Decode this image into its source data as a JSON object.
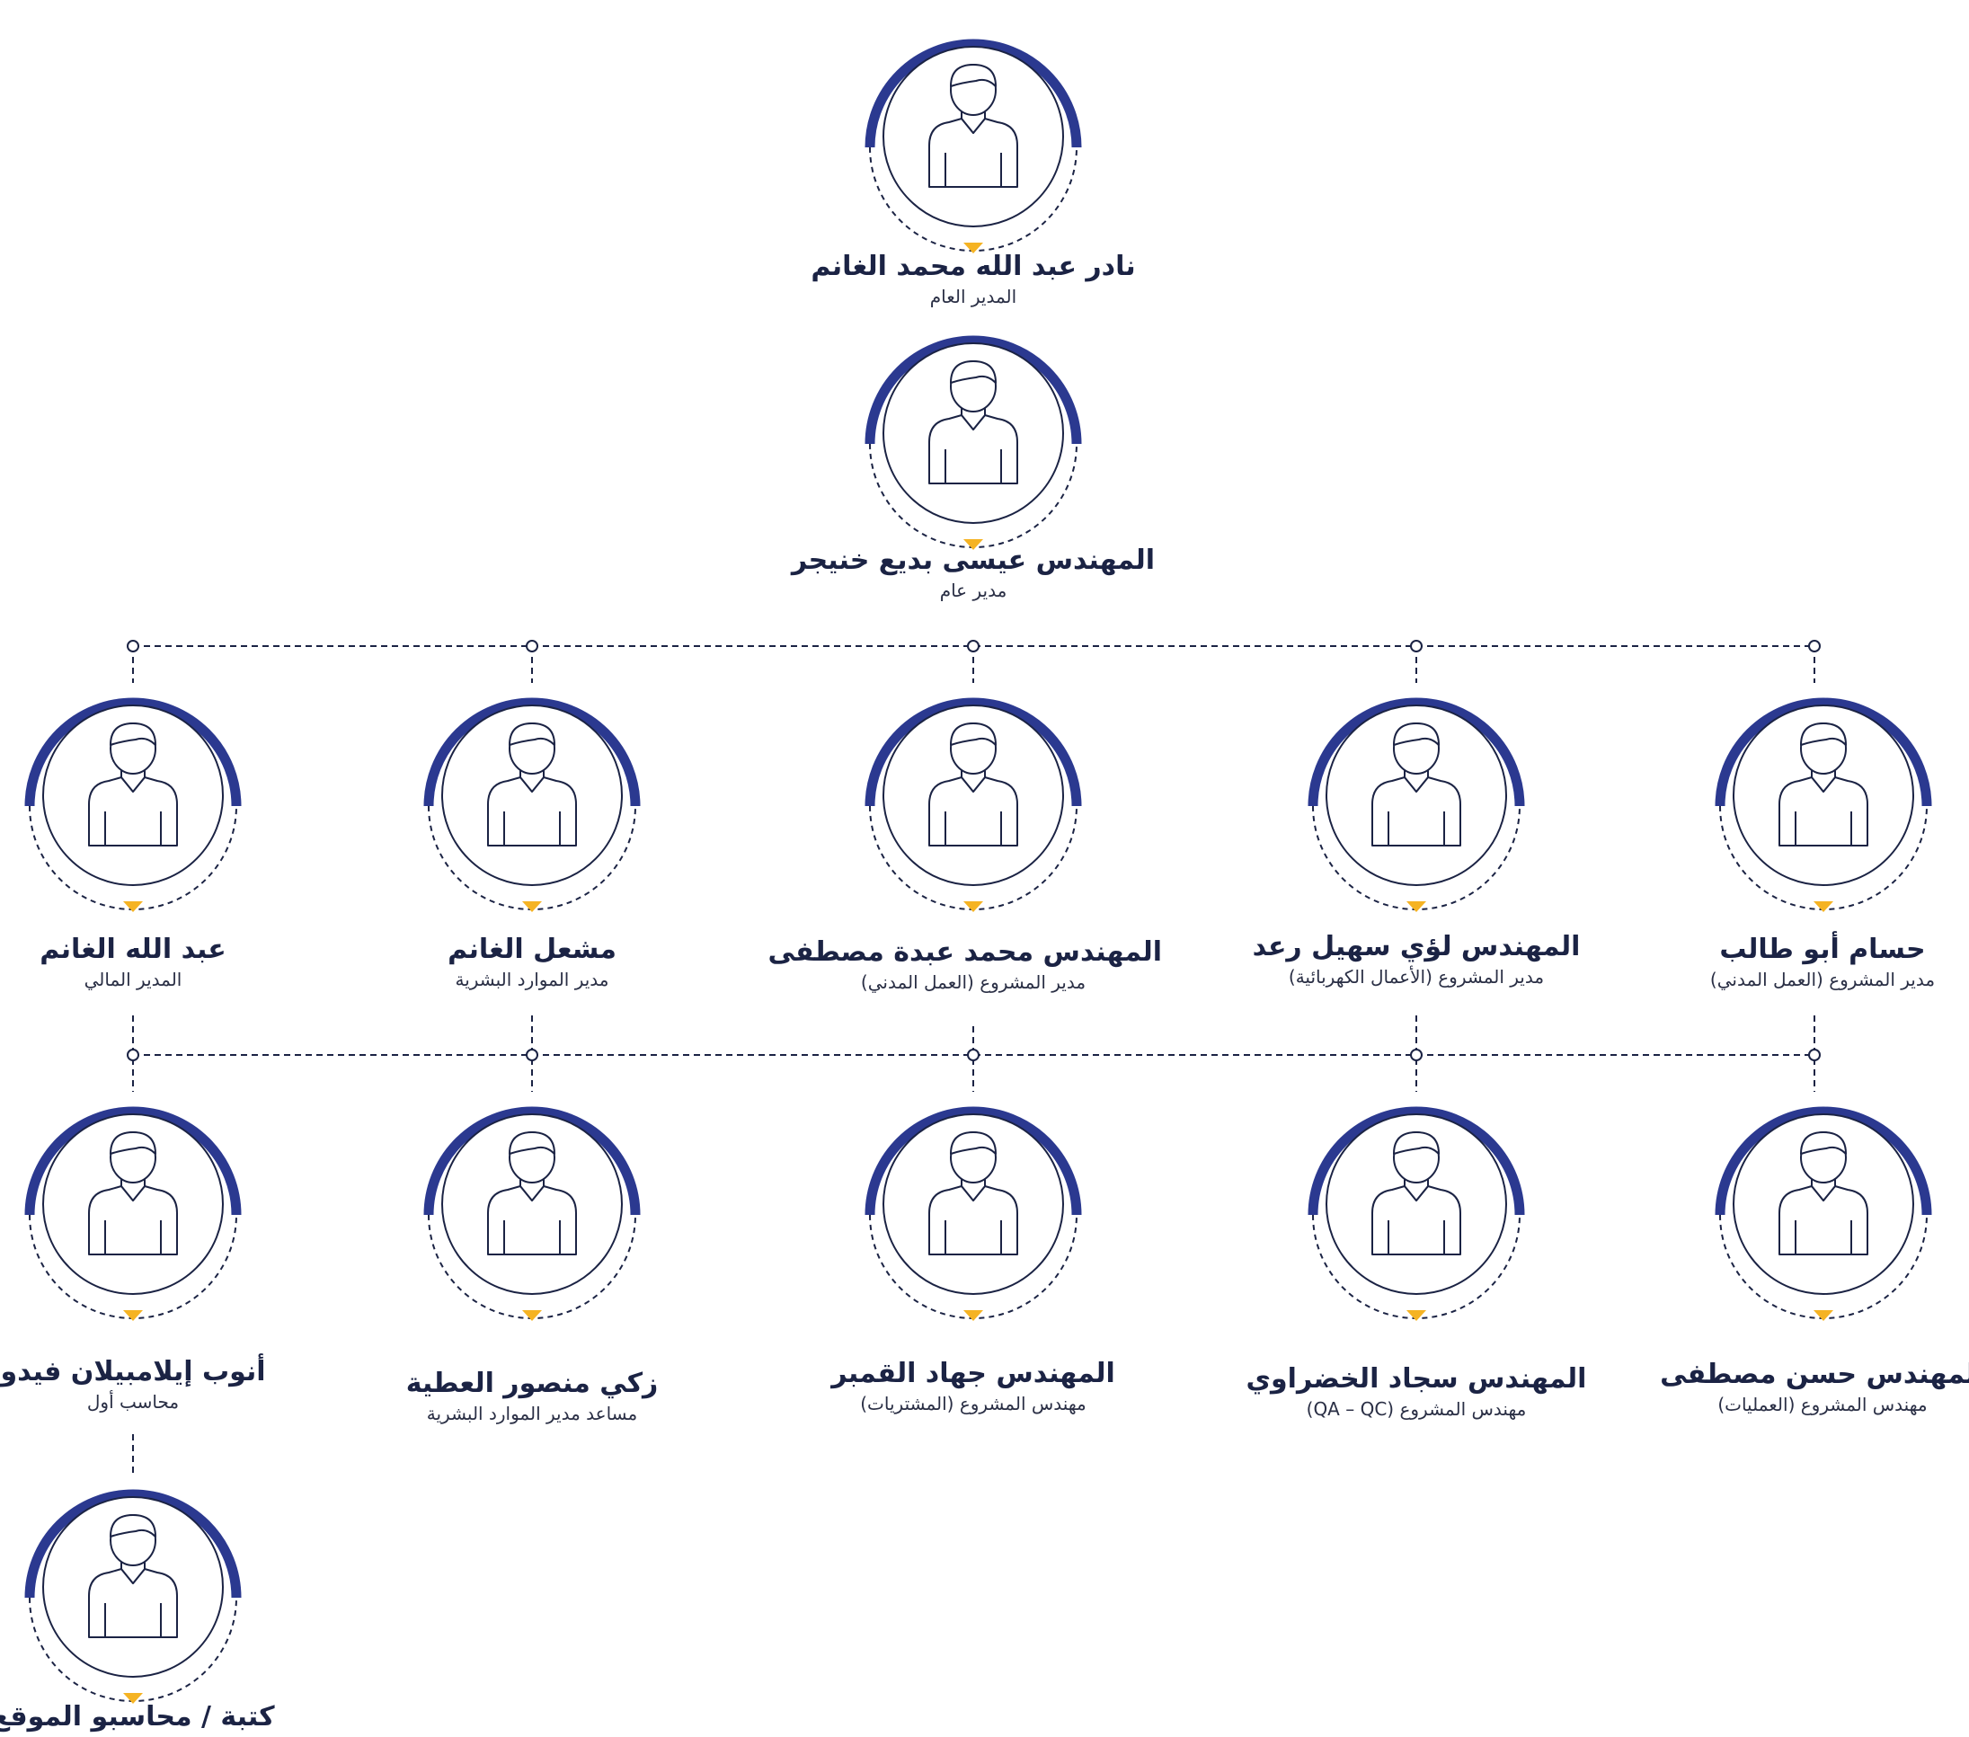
{
  "colors": {
    "ring": "#2b3990",
    "pointer": "#f5b323",
    "line": "#1b2344",
    "text": "#1b2344"
  },
  "icon": "person-outline-icon",
  "people": [
    {
      "id": "gm",
      "name": "نادر عبد الله محمد الغانم",
      "title": "المدير العام"
    },
    {
      "id": "md",
      "name": "المهندس عيسى بديع خنيجر",
      "title": "مدير عام"
    },
    {
      "id": "fin",
      "name": "عبد الله الغانم",
      "title": "المدير المالي"
    },
    {
      "id": "hr",
      "name": "مشعل الغانم",
      "title": "مدير الموارد البشرية"
    },
    {
      "id": "pm-civil-1",
      "name": "المهندس محمد عبدة مصطفى",
      "title": "مدير المشروع (العمل المدني)"
    },
    {
      "id": "pm-elec",
      "name": "المهندس لؤي سهيل رعد",
      "title": "مدير المشروع (الأعمال الكهربائية)"
    },
    {
      "id": "pm-civil-2",
      "name": "حسام أبو طالب",
      "title": "مدير المشروع (العمل المدني)"
    },
    {
      "id": "acc",
      "name": "أنوب إيلامبيلان فيدو",
      "title": "محاسب أول"
    },
    {
      "id": "hr-asst",
      "name": "زكي منصور العطية",
      "title": "مساعد مدير الموارد البشرية"
    },
    {
      "id": "eng-proc",
      "name": "المهندس جهاد القمبر",
      "title": "مهندس المشروع (المشتريات)"
    },
    {
      "id": "eng-qa",
      "name": "المهندس سجاد الخضراوي",
      "title": "مهندس المشروع (QA – QC)"
    },
    {
      "id": "eng-ops",
      "name": "المهندس حسن مصطفى",
      "title": "مهندس المشروع (العمليات)"
    },
    {
      "id": "site",
      "name": "كتبة / محاسبو الموقع",
      "title": ""
    }
  ]
}
